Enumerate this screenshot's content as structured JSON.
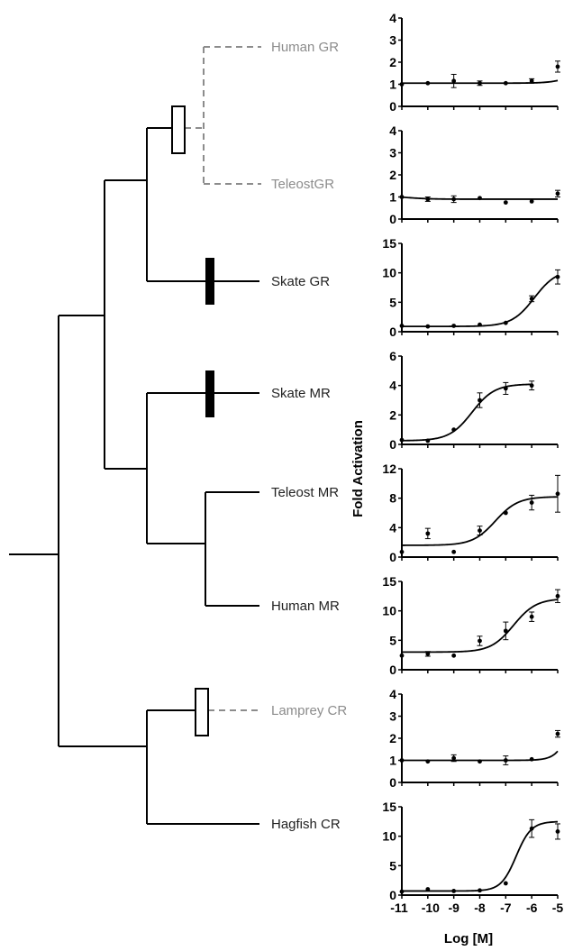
{
  "x_axis_label": "Log [M]",
  "y_axis_label": "Fold Activation",
  "x_tick_labels": [
    "-11",
    "-10",
    "-9",
    "-8",
    "-7",
    "-6",
    "-5"
  ],
  "colors": {
    "tree": "#000000",
    "dashed_branch": "#8c8c8c",
    "grey_label": "#8c8c8c",
    "black_label": "#222222",
    "curve": "#000000"
  },
  "tree": {
    "taxa": [
      {
        "name": "Human GR",
        "style": "dashed"
      },
      {
        "name": "TeleostGR",
        "style": "dashed"
      },
      {
        "name": "Skate GR",
        "style": "solid"
      },
      {
        "name": "Skate MR",
        "style": "solid"
      },
      {
        "name": "Teleost MR",
        "style": "solid"
      },
      {
        "name": "Human MR",
        "style": "solid"
      },
      {
        "name": "Lamprey CR",
        "style": "dashed"
      },
      {
        "name": "Hagfish CR",
        "style": "solid"
      }
    ],
    "markers": [
      {
        "branch": "GR ancestor",
        "fill": "open"
      },
      {
        "branch": "Skate GR",
        "fill": "filled"
      },
      {
        "branch": "Skate MR",
        "fill": "filled"
      },
      {
        "branch": "Lamprey CR",
        "fill": "open"
      }
    ]
  },
  "chart_data": [
    {
      "type": "scatter",
      "receptor": "Human GR",
      "xlim": [
        -11,
        -5
      ],
      "ylim": [
        0,
        4
      ],
      "yticks": [
        "0",
        "1",
        "2",
        "3",
        "4"
      ],
      "points": [
        {
          "x": -11,
          "y": 1.0,
          "err": 0
        },
        {
          "x": -10,
          "y": 1.05,
          "err": 0
        },
        {
          "x": -9,
          "y": 1.15,
          "err": 0.3
        },
        {
          "x": -8,
          "y": 1.05,
          "err": 0.1
        },
        {
          "x": -7,
          "y": 1.05,
          "err": 0
        },
        {
          "x": -6,
          "y": 1.15,
          "err": 0.1
        },
        {
          "x": -5,
          "y": 1.8,
          "err": 0.25
        }
      ],
      "fit": {
        "bottom": 1.05,
        "top": 5.0,
        "logEC50": -3.5,
        "hill": 1.0
      }
    },
    {
      "type": "scatter",
      "receptor": "TeleostGR",
      "xlim": [
        -11,
        -5
      ],
      "ylim": [
        0,
        4
      ],
      "yticks": [
        "0",
        "1",
        "2",
        "3",
        "4"
      ],
      "points": [
        {
          "x": -11,
          "y": 1.0,
          "err": 0
        },
        {
          "x": -10,
          "y": 0.9,
          "err": 0.1
        },
        {
          "x": -9,
          "y": 0.9,
          "err": 0.15
        },
        {
          "x": -8,
          "y": 0.95,
          "err": 0
        },
        {
          "x": -7,
          "y": 0.75,
          "err": 0
        },
        {
          "x": -6,
          "y": 0.8,
          "err": 0
        },
        {
          "x": -5,
          "y": 1.15,
          "err": 0.15
        }
      ],
      "fit": {
        "bottom": 0.9,
        "top": 1.05,
        "logEC50": -10.8,
        "hill": -1.0
      }
    },
    {
      "type": "scatter",
      "receptor": "Skate GR",
      "xlim": [
        -11,
        -5
      ],
      "ylim": [
        0,
        15
      ],
      "yticks": [
        "0",
        "5",
        "10",
        "15"
      ],
      "points": [
        {
          "x": -11,
          "y": 1.0,
          "err": 0
        },
        {
          "x": -10,
          "y": 0.9,
          "err": 0
        },
        {
          "x": -9,
          "y": 1.0,
          "err": 0
        },
        {
          "x": -8,
          "y": 1.2,
          "err": 0
        },
        {
          "x": -7,
          "y": 1.5,
          "err": 0
        },
        {
          "x": -6,
          "y": 5.6,
          "err": 0.5
        },
        {
          "x": -5,
          "y": 9.3,
          "err": 1.2
        }
      ],
      "fit": {
        "bottom": 0.9,
        "top": 10.6,
        "logEC50": -5.9,
        "hill": 1.0
      }
    },
    {
      "type": "scatter",
      "receptor": "Skate MR",
      "xlim": [
        -11,
        -5
      ],
      "ylim": [
        0,
        6
      ],
      "yticks": [
        "0",
        "2",
        "4",
        "6"
      ],
      "points": [
        {
          "x": -11,
          "y": 0.3,
          "err": 0
        },
        {
          "x": -10,
          "y": 0.25,
          "err": 0
        },
        {
          "x": -9,
          "y": 1.0,
          "err": 0
        },
        {
          "x": -8,
          "y": 3.0,
          "err": 0.5
        },
        {
          "x": -7,
          "y": 3.8,
          "err": 0.4
        },
        {
          "x": -6,
          "y": 4.0,
          "err": 0.3
        }
      ],
      "fit": {
        "bottom": 0.25,
        "top": 4.1,
        "logEC50": -8.3,
        "hill": 1.0,
        "xmax": -6
      }
    },
    {
      "type": "scatter",
      "receptor": "Teleost MR",
      "xlim": [
        -11,
        -5
      ],
      "ylim": [
        0,
        12
      ],
      "yticks": [
        "0",
        "4",
        "8",
        "12"
      ],
      "points": [
        {
          "x": -11,
          "y": 0.7,
          "err": 0
        },
        {
          "x": -10,
          "y": 3.2,
          "err": 0.7
        },
        {
          "x": -9,
          "y": 0.7,
          "err": 0
        },
        {
          "x": -8,
          "y": 3.6,
          "err": 0.6
        },
        {
          "x": -7,
          "y": 6.0,
          "err": 0
        },
        {
          "x": -6,
          "y": 7.4,
          "err": 1.0
        },
        {
          "x": -5,
          "y": 8.6,
          "err": 2.5
        }
      ],
      "fit": {
        "bottom": 1.6,
        "top": 8.2,
        "logEC50": -7.4,
        "hill": 1.0
      }
    },
    {
      "type": "scatter",
      "receptor": "Human MR",
      "xlim": [
        -11,
        -5
      ],
      "ylim": [
        0,
        15
      ],
      "yticks": [
        "0",
        "5",
        "10",
        "15"
      ],
      "points": [
        {
          "x": -11,
          "y": 2.4,
          "err": 0
        },
        {
          "x": -10,
          "y": 2.7,
          "err": 0.4
        },
        {
          "x": -9,
          "y": 2.4,
          "err": 0
        },
        {
          "x": -8,
          "y": 4.9,
          "err": 0.8
        },
        {
          "x": -7,
          "y": 6.6,
          "err": 1.5
        },
        {
          "x": -6,
          "y": 9.0,
          "err": 0.8
        },
        {
          "x": -5,
          "y": 12.5,
          "err": 1.1
        }
      ],
      "fit": {
        "bottom": 3.0,
        "top": 12.1,
        "logEC50": -6.7,
        "hill": 1.0
      }
    },
    {
      "type": "scatter",
      "receptor": "Lamprey CR",
      "xlim": [
        -11,
        -5
      ],
      "ylim": [
        0,
        4
      ],
      "yticks": [
        "0",
        "1",
        "2",
        "3",
        "4"
      ],
      "points": [
        {
          "x": -11,
          "y": 1.0,
          "err": 0
        },
        {
          "x": -10,
          "y": 0.95,
          "err": 0
        },
        {
          "x": -9,
          "y": 1.1,
          "err": 0.15
        },
        {
          "x": -8,
          "y": 0.95,
          "err": 0
        },
        {
          "x": -7,
          "y": 1.0,
          "err": 0.2
        },
        {
          "x": -6,
          "y": 1.05,
          "err": 0
        },
        {
          "x": -5,
          "y": 2.2,
          "err": 0.15
        }
      ],
      "fit": {
        "bottom": 1.0,
        "top": 8.0,
        "logEC50": -4.2,
        "hill": 1.5
      }
    },
    {
      "type": "scatter",
      "receptor": "Hagfish CR",
      "xlim": [
        -11,
        -5
      ],
      "ylim": [
        0,
        15
      ],
      "yticks": [
        "0",
        "5",
        "10",
        "15"
      ],
      "points": [
        {
          "x": -11,
          "y": 0.6,
          "err": 0
        },
        {
          "x": -10,
          "y": 1.0,
          "err": 0
        },
        {
          "x": -9,
          "y": 0.7,
          "err": 0
        },
        {
          "x": -8,
          "y": 0.8,
          "err": 0
        },
        {
          "x": -7,
          "y": 2.0,
          "err": 0
        },
        {
          "x": -6,
          "y": 11.3,
          "err": 1.5
        },
        {
          "x": -5,
          "y": 10.8,
          "err": 1.3
        }
      ],
      "fit": {
        "bottom": 0.7,
        "top": 12.5,
        "logEC50": -6.6,
        "hill": 1.5
      }
    }
  ]
}
